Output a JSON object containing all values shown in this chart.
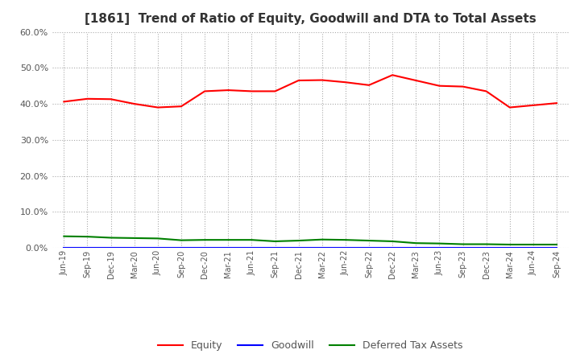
{
  "title": "[1861]  Trend of Ratio of Equity, Goodwill and DTA to Total Assets",
  "x_labels": [
    "Jun-19",
    "Sep-19",
    "Dec-19",
    "Mar-20",
    "Jun-20",
    "Sep-20",
    "Dec-20",
    "Mar-21",
    "Jun-21",
    "Sep-21",
    "Dec-21",
    "Mar-22",
    "Jun-22",
    "Sep-22",
    "Dec-22",
    "Mar-23",
    "Jun-23",
    "Sep-23",
    "Dec-23",
    "Mar-24",
    "Jun-24",
    "Sep-24"
  ],
  "equity": [
    0.406,
    0.414,
    0.413,
    0.4,
    0.39,
    0.393,
    0.435,
    0.438,
    0.435,
    0.435,
    0.465,
    0.466,
    0.46,
    0.452,
    0.48,
    0.465,
    0.45,
    0.448,
    0.435,
    0.39,
    0.396,
    0.402
  ],
  "goodwill": [
    0.001,
    0.001,
    0.001,
    0.001,
    0.001,
    0.001,
    0.001,
    0.001,
    0.001,
    0.001,
    0.001,
    0.001,
    0.001,
    0.001,
    0.001,
    0.001,
    0.001,
    0.001,
    0.001,
    0.001,
    0.001,
    0.001
  ],
  "dta": [
    0.032,
    0.031,
    0.028,
    0.027,
    0.026,
    0.021,
    0.022,
    0.022,
    0.022,
    0.018,
    0.02,
    0.023,
    0.022,
    0.02,
    0.018,
    0.013,
    0.012,
    0.01,
    0.01,
    0.009,
    0.009,
    0.009
  ],
  "equity_color": "#ff0000",
  "goodwill_color": "#0000ff",
  "dta_color": "#008000",
  "ylim": [
    0.0,
    0.6
  ],
  "yticks": [
    0.0,
    0.1,
    0.2,
    0.3,
    0.4,
    0.5,
    0.6
  ],
  "bg_color": "#ffffff",
  "plot_bg_color": "#ffffff",
  "grid_color": "#aaaaaa",
  "title_fontsize": 11,
  "legend_labels": [
    "Equity",
    "Goodwill",
    "Deferred Tax Assets"
  ]
}
